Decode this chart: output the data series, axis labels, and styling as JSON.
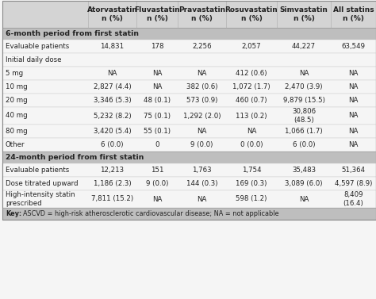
{
  "col_headers": [
    "Atorvastatin\nn (%)",
    "Fluvastatin\nn (%)",
    "Pravastatin\nn (%)",
    "Rosuvastatin\nn (%)",
    "Simvastatin\nn (%)",
    "All statins\nn (%)"
  ],
  "section1_label": "6-month period from first statin",
  "section2_label": "24-month period from first statin",
  "rows": [
    {
      "label": "Evaluable patients",
      "values": [
        "14,831",
        "178",
        "2,256",
        "2,057",
        "44,227",
        "63,549"
      ]
    },
    {
      "label": "Initial daily dose",
      "values": [
        "",
        "",
        "",
        "",
        "",
        ""
      ]
    },
    {
      "label": "5 mg",
      "values": [
        "NA",
        "NA",
        "NA",
        "412 (0.6)",
        "NA",
        "NA"
      ]
    },
    {
      "label": "10 mg",
      "values": [
        "2,827 (4.4)",
        "NA",
        "382 (0.6)",
        "1,072 (1.7)",
        "2,470 (3.9)",
        "NA"
      ]
    },
    {
      "label": "20 mg",
      "values": [
        "3,346 (5.3)",
        "48 (0.1)",
        "573 (0.9)",
        "460 (0.7)",
        "9,879 (15.5)",
        "NA"
      ]
    },
    {
      "label": "40 mg",
      "values": [
        "5,232 (8.2)",
        "75 (0.1)",
        "1,292 (2.0)",
        "113 (0.2)",
        "30,806\n(48.5)",
        "NA"
      ]
    },
    {
      "label": "80 mg",
      "values": [
        "3,420 (5.4)",
        "55 (0.1)",
        "NA",
        "NA",
        "1,066 (1.7)",
        "NA"
      ]
    },
    {
      "label": "Other",
      "values": [
        "6 (0.0)",
        "0",
        "9 (0.0)",
        "0 (0.0)",
        "6 (0.0)",
        "NA"
      ]
    }
  ],
  "rows2": [
    {
      "label": "Evaluable patients",
      "values": [
        "12,213",
        "151",
        "1,763",
        "1,754",
        "35,483",
        "51,364"
      ]
    },
    {
      "label": "Dose titrated upward",
      "values": [
        "1,186 (2.3)",
        "9 (0.0)",
        "144 (0.3)",
        "169 (0.3)",
        "3,089 (6.0)",
        "4,597 (8.9)"
      ]
    },
    {
      "label": "High-intensity statin\nprescribed",
      "values": [
        "7,811 (15.2)",
        "NA",
        "NA",
        "598 (1.2)",
        "NA",
        "8,409\n(16.4)"
      ]
    }
  ],
  "bg_header": "#d4d4d4",
  "bg_section": "#bebebe",
  "bg_white": "#f5f5f5",
  "bg_key": "#bebebe",
  "text_color": "#222222",
  "font_size": 6.2,
  "header_font_size": 6.5
}
